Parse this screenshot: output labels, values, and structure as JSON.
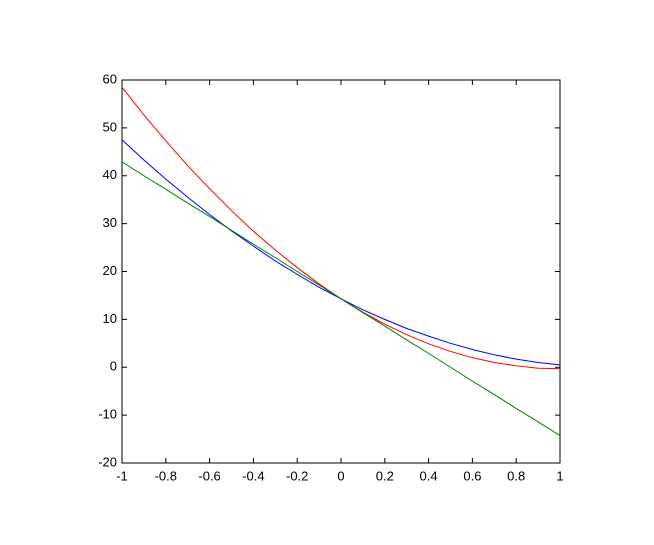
{
  "chart_data": {
    "type": "line",
    "x": [
      -1,
      -0.9,
      -0.8,
      -0.7,
      -0.6,
      -0.5,
      -0.4,
      -0.3,
      -0.2,
      -0.1,
      0,
      0.1,
      0.2,
      0.3,
      0.4,
      0.5,
      0.6,
      0.7,
      0.8,
      0.9,
      1
    ],
    "series": [
      {
        "color": "#ff0000",
        "values": [
          58.5,
          52.7,
          47.3,
          42.1,
          37.3,
          32.7,
          28.4,
          24.5,
          20.8,
          17.4,
          14.3,
          11.5,
          9.0,
          6.8,
          4.9,
          3.3,
          2.0,
          1.0,
          0.3,
          -0.2,
          -0.3
        ]
      },
      {
        "color": "#0000ff",
        "values": [
          47.5,
          43.3,
          39.3,
          35.5,
          31.9,
          28.5,
          25.3,
          22.2,
          19.4,
          16.7,
          14.3,
          12.0,
          10.0,
          8.1,
          6.5,
          5.0,
          3.7,
          2.6,
          1.7,
          1.0,
          0.5
        ]
      },
      {
        "color": "#008000",
        "values": [
          42.9,
          40.0,
          37.2,
          34.3,
          31.5,
          28.6,
          25.7,
          22.9,
          20.0,
          17.2,
          14.3,
          11.4,
          8.6,
          5.7,
          2.9,
          0.0,
          -2.9,
          -5.7,
          -8.6,
          -11.4,
          -14.3
        ]
      }
    ],
    "xlim": [
      -1,
      1
    ],
    "xticks": [
      -1,
      -0.8,
      -0.6,
      -0.4,
      -0.2,
      0,
      0.2,
      0.4,
      0.6,
      0.8,
      1
    ],
    "ylim": [
      -20,
      60
    ],
    "yticks": [
      -20,
      -10,
      0,
      10,
      20,
      30,
      40,
      50,
      60
    ],
    "grid": false
  }
}
